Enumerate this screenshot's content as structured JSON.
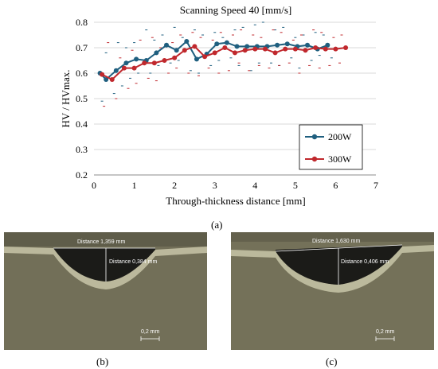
{
  "chart_data": {
    "type": "line",
    "title": "Scanning Speed 40 [mm/s]",
    "xlabel": "Through-thickness distance [mm]",
    "ylabel": "HV / HVmax.",
    "xlim": [
      0,
      7
    ],
    "ylim": [
      0.2,
      0.8
    ],
    "xticks": [
      "0",
      "1",
      "2",
      "3",
      "4",
      "5",
      "6",
      "7"
    ],
    "yticks": [
      "0.2",
      "0.3",
      "0.4",
      "0.5",
      "0.6",
      "0.7",
      "0.8"
    ],
    "grid": "horizontal",
    "legend_position": "bottom-right",
    "series": [
      {
        "name": "200W",
        "color": "#1f5f7f",
        "x": [
          0.15,
          0.3,
          0.55,
          0.8,
          1.05,
          1.3,
          1.55,
          1.8,
          2.05,
          2.3,
          2.55,
          2.8,
          3.05,
          3.3,
          3.55,
          3.8,
          4.05,
          4.3,
          4.55,
          4.8,
          5.05,
          5.3,
          5.55,
          5.8
        ],
        "y": [
          0.6,
          0.575,
          0.61,
          0.64,
          0.655,
          0.65,
          0.68,
          0.71,
          0.69,
          0.725,
          0.655,
          0.675,
          0.715,
          0.72,
          0.705,
          0.705,
          0.705,
          0.705,
          0.71,
          0.715,
          0.705,
          0.71,
          0.695,
          0.71
        ]
      },
      {
        "name": "300W",
        "color": "#c0282d",
        "x": [
          0.2,
          0.45,
          0.75,
          1.0,
          1.25,
          1.5,
          1.75,
          2.0,
          2.25,
          2.5,
          2.75,
          3.0,
          3.25,
          3.5,
          3.75,
          4.0,
          4.25,
          4.5,
          4.75,
          5.0,
          5.25,
          5.5,
          5.75,
          6.0,
          6.25
        ],
        "y": [
          0.595,
          0.575,
          0.62,
          0.62,
          0.64,
          0.64,
          0.65,
          0.66,
          0.69,
          0.705,
          0.665,
          0.68,
          0.7,
          0.68,
          0.69,
          0.695,
          0.695,
          0.68,
          0.695,
          0.695,
          0.69,
          0.7,
          0.695,
          0.695,
          0.7
        ]
      }
    ],
    "error_marks": [
      {
        "color": "#1f5f7f",
        "x": [
          0.2,
          0.5,
          0.7,
          0.9,
          1.1,
          1.4,
          1.6,
          1.9,
          2.1,
          2.4,
          2.6,
          2.9,
          3.1,
          3.4,
          3.6,
          3.9,
          4.1,
          4.4,
          4.6,
          4.9,
          5.1,
          5.4,
          5.6,
          5.9
        ],
        "y": [
          0.49,
          0.52,
          0.55,
          0.58,
          0.6,
          0.6,
          0.63,
          0.64,
          0.65,
          0.61,
          0.6,
          0.63,
          0.65,
          0.66,
          0.63,
          0.61,
          0.64,
          0.64,
          0.63,
          0.66,
          0.62,
          0.65,
          0.67,
          0.66
        ]
      },
      {
        "color": "#1f5f7f",
        "x": [
          0.3,
          0.6,
          0.8,
          1.0,
          1.3,
          1.5,
          1.7,
          2.0,
          2.2,
          2.5,
          2.7,
          3.0,
          3.2,
          3.5,
          3.7,
          4.0,
          4.2,
          4.5,
          4.7,
          5.0,
          5.2,
          5.5,
          5.7
        ],
        "y": [
          0.68,
          0.72,
          0.7,
          0.72,
          0.77,
          0.73,
          0.75,
          0.78,
          0.74,
          0.77,
          0.75,
          0.76,
          0.74,
          0.77,
          0.78,
          0.79,
          0.8,
          0.77,
          0.78,
          0.74,
          0.75,
          0.76,
          0.75
        ]
      },
      {
        "color": "#c0282d",
        "x": [
          0.25,
          0.55,
          0.85,
          1.05,
          1.35,
          1.55,
          1.85,
          2.05,
          2.35,
          2.6,
          2.85,
          3.1,
          3.35,
          3.6,
          3.85,
          4.1,
          4.35,
          4.6,
          4.85,
          5.1,
          5.35,
          5.6,
          5.85,
          6.1
        ],
        "y": [
          0.47,
          0.5,
          0.54,
          0.56,
          0.58,
          0.57,
          0.6,
          0.62,
          0.6,
          0.59,
          0.62,
          0.6,
          0.61,
          0.64,
          0.61,
          0.63,
          0.62,
          0.63,
          0.64,
          0.6,
          0.63,
          0.62,
          0.63,
          0.64
        ]
      },
      {
        "color": "#c0282d",
        "x": [
          0.35,
          0.65,
          0.95,
          1.15,
          1.45,
          1.65,
          1.95,
          2.15,
          2.45,
          2.65,
          2.95,
          3.15,
          3.45,
          3.65,
          3.95,
          4.15,
          4.45,
          4.65,
          4.95,
          5.15,
          5.45,
          5.65,
          5.95,
          6.15
        ],
        "y": [
          0.72,
          0.66,
          0.69,
          0.73,
          0.74,
          0.7,
          0.72,
          0.75,
          0.76,
          0.74,
          0.73,
          0.76,
          0.75,
          0.77,
          0.75,
          0.74,
          0.77,
          0.76,
          0.73,
          0.75,
          0.77,
          0.76,
          0.74,
          0.75
        ]
      }
    ]
  },
  "captions": {
    "a": "(a)",
    "b": "(b)",
    "c": "(c)"
  },
  "micrograph_b": {
    "distance_width": "Distance 1,359 mm",
    "distance_depth": "Distance 0,384 mm",
    "scale": "0,2 mm"
  },
  "micrograph_c": {
    "distance_width": "Distance 1,630 mm",
    "distance_depth": "Distance 0,406 mm",
    "scale": "0,2 mm"
  }
}
